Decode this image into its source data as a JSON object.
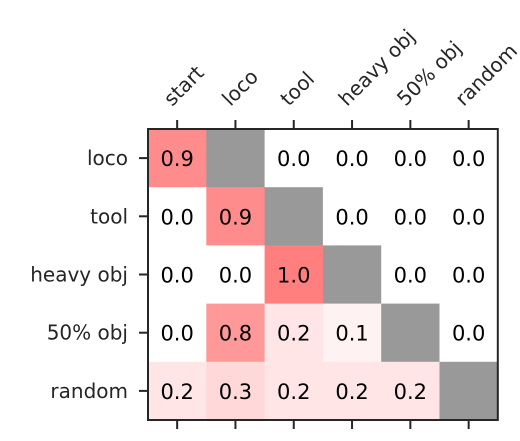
{
  "chart_data": {
    "type": "heatmap",
    "columns": [
      "start",
      "loco",
      "tool",
      "heavy obj",
      "50% obj",
      "random"
    ],
    "rows": [
      "loco",
      "tool",
      "heavy obj",
      "50% obj",
      "random"
    ],
    "values": [
      [
        0.9,
        null,
        0.0,
        0.0,
        0.0,
        0.0
      ],
      [
        0.0,
        0.9,
        null,
        0.0,
        0.0,
        0.0
      ],
      [
        0.0,
        0.0,
        1.0,
        null,
        0.0,
        0.0
      ],
      [
        0.0,
        0.8,
        0.2,
        0.1,
        null,
        0.0
      ],
      [
        0.2,
        0.3,
        0.2,
        0.2,
        0.2,
        null
      ]
    ],
    "value_labels": [
      [
        "0.9",
        "",
        "0.0",
        "0.0",
        "0.0",
        "0.0"
      ],
      [
        "0.0",
        "0.9",
        "",
        "0.0",
        "0.0",
        "0.0"
      ],
      [
        "0.0",
        "0.0",
        "1.0",
        "",
        "0.0",
        "0.0"
      ],
      [
        "0.0",
        "0.8",
        "0.2",
        "0.1",
        "",
        "0.0"
      ],
      [
        "0.2",
        "0.3",
        "0.2",
        "0.2",
        "0.2",
        ""
      ]
    ],
    "vmin": 0,
    "vmax": 1,
    "colors": {
      "low": "#ffffff",
      "high": "#ff7f7f",
      "masked": "#999999",
      "frame": "#262626",
      "text": "#000000"
    },
    "x_tick_position": "top",
    "x_tick_rotation": 45,
    "grid": false,
    "legend": "none"
  }
}
